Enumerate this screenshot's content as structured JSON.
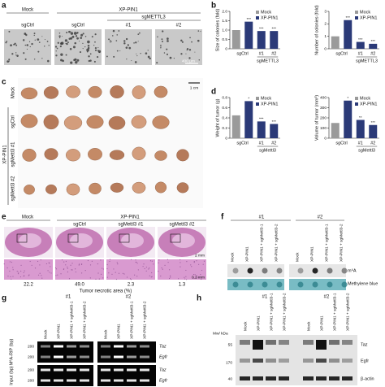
{
  "panel_labels": [
    "a",
    "b",
    "c",
    "d",
    "e",
    "f",
    "g",
    "h"
  ],
  "a": {
    "mock": "Mock",
    "xp": "XP-PIN1",
    "sg": "sgMETTL3",
    "lanes": [
      "sgCtrl",
      "sgCtrl",
      "#1",
      "#2"
    ],
    "scale": "400 µm"
  },
  "c": {
    "rows": [
      "Mock",
      "sgCtrl",
      "sgMettl3 #1",
      "sgMettl3 #2"
    ],
    "group": "XP-PIN1",
    "scale": "1 cm"
  },
  "e": {
    "mock": "Mock",
    "xp": "XP-PIN1",
    "lanes": [
      "sgCtrl",
      "sgMettl3 #1",
      "sgMettl3 #2"
    ],
    "scale1": "2 mm",
    "scale2": "0.2 mm",
    "values": [
      "22.2",
      "49.0",
      "2.3",
      "1.3"
    ],
    "caption": "Tumor necrotic area (%)"
  },
  "f": {
    "groups": [
      "#1",
      "#2"
    ],
    "lanes": [
      "Mock",
      "XP-PIN1",
      "XP-PIN1 + sgMettl3-1",
      "XP-PIN1 + sgMettl3-2"
    ],
    "rows": [
      "m⁶A",
      "Methylene blue"
    ]
  },
  "g": {
    "groups": [
      "#1",
      "#2"
    ],
    "lanes": [
      "Mock",
      "XP-PIN1",
      "XP-PIN1 + sgMettl3-1",
      "XP-PIN1 + sgMettl3-2"
    ],
    "sections": [
      "M⁶A-RIP (bp)",
      "Input (bp)"
    ],
    "size": "200",
    "genes": [
      "Taz",
      "Egfr",
      "Taz",
      "Egfr"
    ]
  },
  "h": {
    "groups": [
      "#1",
      "#2"
    ],
    "lanes": [
      "Mock",
      "XP-PIN1",
      "XP-PIN1 + sgMettl3-1",
      "XP-PIN1 + sgMettl3-2"
    ],
    "mw": "Mw/ kDa",
    "markers": [
      "55",
      "170",
      "40"
    ],
    "genes": [
      "Taz",
      "Egfr",
      "β-actin"
    ]
  },
  "chart_data": [
    {
      "type": "bar",
      "ylabel": "Size of colonies (fold)",
      "categories": [
        "sgCtrl",
        null,
        "#1",
        "#2"
      ],
      "group_label": "sgMETTL3",
      "series": [
        {
          "name": "Mock",
          "color": "#9a9a9a",
          "values": [
            1.0,
            null,
            null,
            null
          ]
        },
        {
          "name": "XP-PIN1",
          "color": "#2b3a78",
          "values": [
            null,
            1.45,
            0.95,
            0.95
          ]
        }
      ],
      "ylim": [
        0,
        2
      ],
      "yticks": [
        0,
        0.5,
        {
          "value": 1,
          "label": "1.0"
        },
        1.5,
        {
          "value": 2,
          "label": "2.0"
        }
      ],
      "stars": [
        null,
        "***",
        "***",
        "***"
      ]
    },
    {
      "type": "bar",
      "ylabel": "Number of colonies (fold)",
      "categories": [
        "sgCtrl",
        null,
        "#1",
        "#2"
      ],
      "group_label": "sgMETTL3",
      "series": [
        {
          "name": "Mock",
          "color": "#9a9a9a",
          "values": [
            1.0,
            null,
            null,
            null
          ]
        },
        {
          "name": "XP-PIN1",
          "color": "#2b3a78",
          "values": [
            null,
            2.3,
            0.55,
            0.4
          ]
        }
      ],
      "ylim": [
        0,
        3
      ],
      "yticks": [
        0,
        1,
        2,
        3
      ],
      "stars": [
        null,
        "***",
        "***",
        "***"
      ]
    },
    {
      "type": "bar",
      "ylabel": "Weight of tumor (g)",
      "categories": [
        "sgCtrl",
        null,
        "#1",
        "#2"
      ],
      "group_label": "sgMettl3",
      "series": [
        {
          "name": "Mock",
          "color": "#9a9a9a",
          "values": [
            0.45,
            null,
            null,
            null
          ]
        },
        {
          "name": "XP-PIN1",
          "color": "#2b3a78",
          "values": [
            null,
            0.73,
            0.33,
            0.28
          ]
        }
      ],
      "ylim": [
        0,
        0.8
      ],
      "yticks": [
        0,
        0.2,
        0.4,
        0.6,
        0.8
      ],
      "stars": [
        null,
        "*",
        "***",
        "***"
      ]
    },
    {
      "type": "bar",
      "ylabel": "Volume of tumor (mm³)",
      "categories": [
        "sgCtrl",
        null,
        "#1",
        "#2"
      ],
      "group_label": "sgMettl3",
      "series": [
        {
          "name": "Mock",
          "color": "#9a9a9a",
          "values": [
            150,
            null,
            null,
            null
          ]
        },
        {
          "name": "XP-PIN1",
          "color": "#2b3a78",
          "values": [
            null,
            370,
            180,
            130
          ]
        }
      ],
      "ylim": [
        0,
        400
      ],
      "yticks": [
        0,
        100,
        200,
        300,
        400
      ],
      "stars": [
        null,
        "*",
        "**",
        "***"
      ]
    }
  ]
}
